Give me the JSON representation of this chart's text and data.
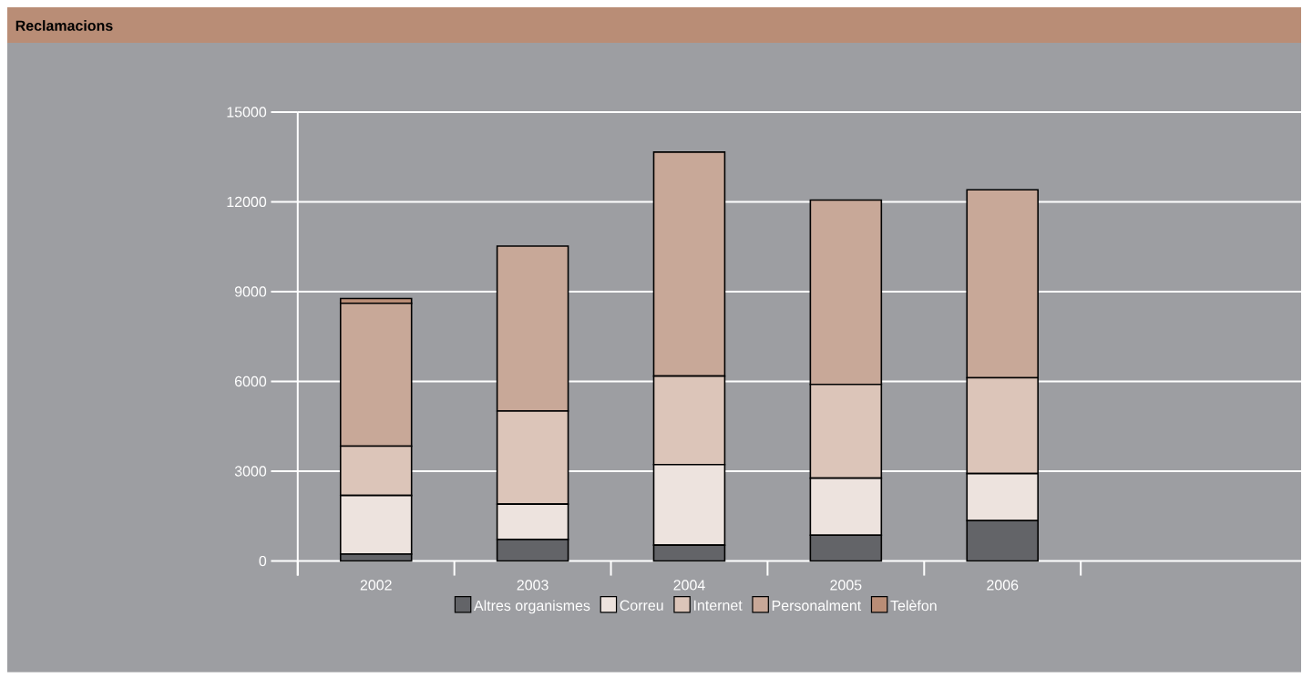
{
  "chart_data": {
    "type": "bar",
    "stacked": true,
    "title": "Reclamacions",
    "categories": [
      "2002",
      "2003",
      "2004",
      "2005",
      "2006"
    ],
    "series": [
      {
        "name": "Altres organismes",
        "color": "#636468",
        "values": [
          230,
          720,
          530,
          860,
          1350
        ]
      },
      {
        "name": "Correu",
        "color": "#ede3de",
        "values": [
          1960,
          1180,
          2690,
          1910,
          1570
        ]
      },
      {
        "name": "Internet",
        "color": "#dcc5b9",
        "values": [
          1650,
          3110,
          2960,
          3130,
          3200
        ]
      },
      {
        "name": "Personalment",
        "color": "#c8a898",
        "values": [
          4770,
          5510,
          7480,
          6160,
          6280
        ]
      },
      {
        "name": "Telèfon",
        "color": "#b98d76",
        "values": [
          160,
          0,
          0,
          0,
          0
        ]
      }
    ],
    "ylim": [
      0,
      15000
    ],
    "yticks": [
      0,
      3000,
      6000,
      9000,
      12000,
      15000
    ],
    "grid": "y",
    "legend": "bottom"
  }
}
